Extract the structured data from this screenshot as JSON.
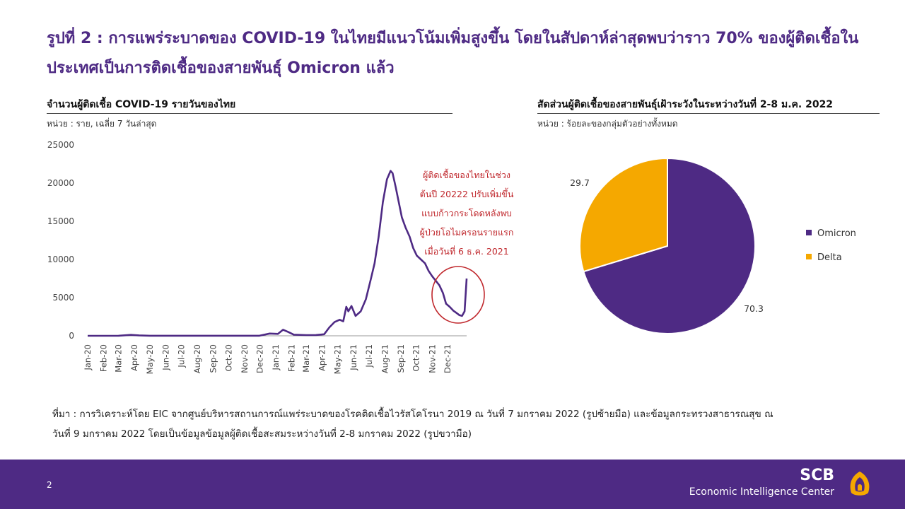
{
  "slide": {
    "title": "รูปที่ 2 : การแพร่ระบาดของ COVID-19 ในไทยมีแนวโน้มเพิ่มสูงขึ้น โดยในสัปดาห์ล่าสุดพบว่าราว 70% ของผู้ติดเชื้อในประเทศเป็นการติดเชื้อของสายพันธุ์ Omicron แล้ว",
    "page_number": "2",
    "source_line1": "ที่มา : การวิเคราะห์โดย EIC จากศูนย์บริหารสถานการณ์แพร่ระบาดของโรคติดเชื้อไวรัสโคโรนา 2019 ณ วันที่ 7 มกราคม 2022 (รูปซ้ายมือ) และข้อมูลกระทรวงสาธารณสุข ณ",
    "source_line2": "วันที่ 9 มกราคม 2022 โดยเป็นข้อมูลข้อมูลผู้ติดเชื้อสะสมระหว่างวันที่ 2-8 มกราคม 2022 (รูปขวามือ)",
    "brand_name": "SCB",
    "brand_subtitle": "Economic Intelligence Center",
    "accent_color": "#4e2a84"
  },
  "left_panel": {
    "title": "จำนวนผู้ติดเชื้อ COVID-19 รายวันของไทย",
    "unit": "หน่วย : ราย, เฉลี่ย 7 วันล่าสุด",
    "annotation": [
      "ผู้ติดเชื้อของไทยในช่วง",
      "ต้นปี 20222 ปรับเพิ่มขึ้น",
      "แบบก้าวกระโดดหลังพบ",
      "ผู้ป่วยโอไมครอนรายแรก",
      "เมื่อวันที่ 6 ธ.ค. 2021"
    ],
    "annotation_color": "#c0282d"
  },
  "right_panel": {
    "title": "สัดส่วนผู้ติดเชื้อของสายพันธุ์เฝ้าระวังในระหว่างวันที่ 2-8 ม.ค. 2022",
    "unit": "หน่วย : ร้อยละของกลุ่มตัวอย่างทั้งหมด"
  },
  "chart_data": [
    {
      "type": "line",
      "title": "จำนวนผู้ติดเชื้อ COVID-19 รายวันของไทย",
      "ylabel": "",
      "ylim": [
        0,
        25000
      ],
      "yticks": [
        "25000",
        "20000",
        "15000",
        "10000",
        "5000",
        "0"
      ],
      "x_tick_labels": [
        "Jan-20",
        "Feb-20",
        "Mar-20",
        "Apr-20",
        "May-20",
        "Jun-20",
        "Jul-20",
        "Aug-20",
        "Sep-20",
        "Oct-20",
        "Nov-20",
        "Dec-20",
        "Jan-21",
        "Feb-21",
        "Mar-21",
        "Apr-21",
        "May-21",
        "Jun-21",
        "Jul-21",
        "Aug-21",
        "Sep-21",
        "Oct-21",
        "Nov-21",
        "Dec-21"
      ],
      "series": [
        {
          "color": "#4e2a84",
          "points": [
            [
              "2020-01-01",
              0
            ],
            [
              "2020-03-01",
              10
            ],
            [
              "2020-03-25",
              120
            ],
            [
              "2020-04-10",
              60
            ],
            [
              "2020-05-01",
              5
            ],
            [
              "2020-11-30",
              5
            ],
            [
              "2020-12-20",
              300
            ],
            [
              "2021-01-05",
              250
            ],
            [
              "2021-01-15",
              800
            ],
            [
              "2021-01-25",
              500
            ],
            [
              "2021-02-05",
              150
            ],
            [
              "2021-03-01",
              90
            ],
            [
              "2021-03-20",
              100
            ],
            [
              "2021-04-05",
              200
            ],
            [
              "2021-04-15",
              1100
            ],
            [
              "2021-04-25",
              1800
            ],
            [
              "2021-05-05",
              2100
            ],
            [
              "2021-05-12",
              1900
            ],
            [
              "2021-05-18",
              3800
            ],
            [
              "2021-05-22",
              3200
            ],
            [
              "2021-05-28",
              3900
            ],
            [
              "2021-06-05",
              2600
            ],
            [
              "2021-06-15",
              3200
            ],
            [
              "2021-06-25",
              4800
            ],
            [
              "2021-07-05",
              7500
            ],
            [
              "2021-07-12",
              9500
            ],
            [
              "2021-07-20",
              13000
            ],
            [
              "2021-07-28",
              17500
            ],
            [
              "2021-08-05",
              20500
            ],
            [
              "2021-08-12",
              21600
            ],
            [
              "2021-08-16",
              21300
            ],
            [
              "2021-08-22",
              19500
            ],
            [
              "2021-08-28",
              17500
            ],
            [
              "2021-09-03",
              15500
            ],
            [
              "2021-09-10",
              14200
            ],
            [
              "2021-09-18",
              13000
            ],
            [
              "2021-09-25",
              11500
            ],
            [
              "2021-10-02",
              10500
            ],
            [
              "2021-10-10",
              10000
            ],
            [
              "2021-10-18",
              9500
            ],
            [
              "2021-10-25",
              8500
            ],
            [
              "2021-11-01",
              7800
            ],
            [
              "2021-11-08",
              7200
            ],
            [
              "2021-11-15",
              6600
            ],
            [
              "2021-11-22",
              5600
            ],
            [
              "2021-11-28",
              4200
            ],
            [
              "2021-12-05",
              3800
            ],
            [
              "2021-12-12",
              3300
            ],
            [
              "2021-12-18",
              3000
            ],
            [
              "2021-12-24",
              2700
            ],
            [
              "2021-12-29",
              2600
            ],
            [
              "2022-01-03",
              3200
            ],
            [
              "2022-01-07",
              7500
            ]
          ]
        }
      ]
    },
    {
      "type": "pie",
      "title": "สัดส่วนผู้ติดเชื้อของสายพันธุ์เฝ้าระวังในระหว่างวันที่ 2-8 ม.ค. 2022",
      "legend_position": "right",
      "slices": [
        {
          "name": "Omicron",
          "value": 70.3,
          "label": "70.3",
          "color": "#4e2a84"
        },
        {
          "name": "Delta",
          "value": 29.7,
          "label": "29.7",
          "color": "#f5a800"
        }
      ]
    }
  ]
}
